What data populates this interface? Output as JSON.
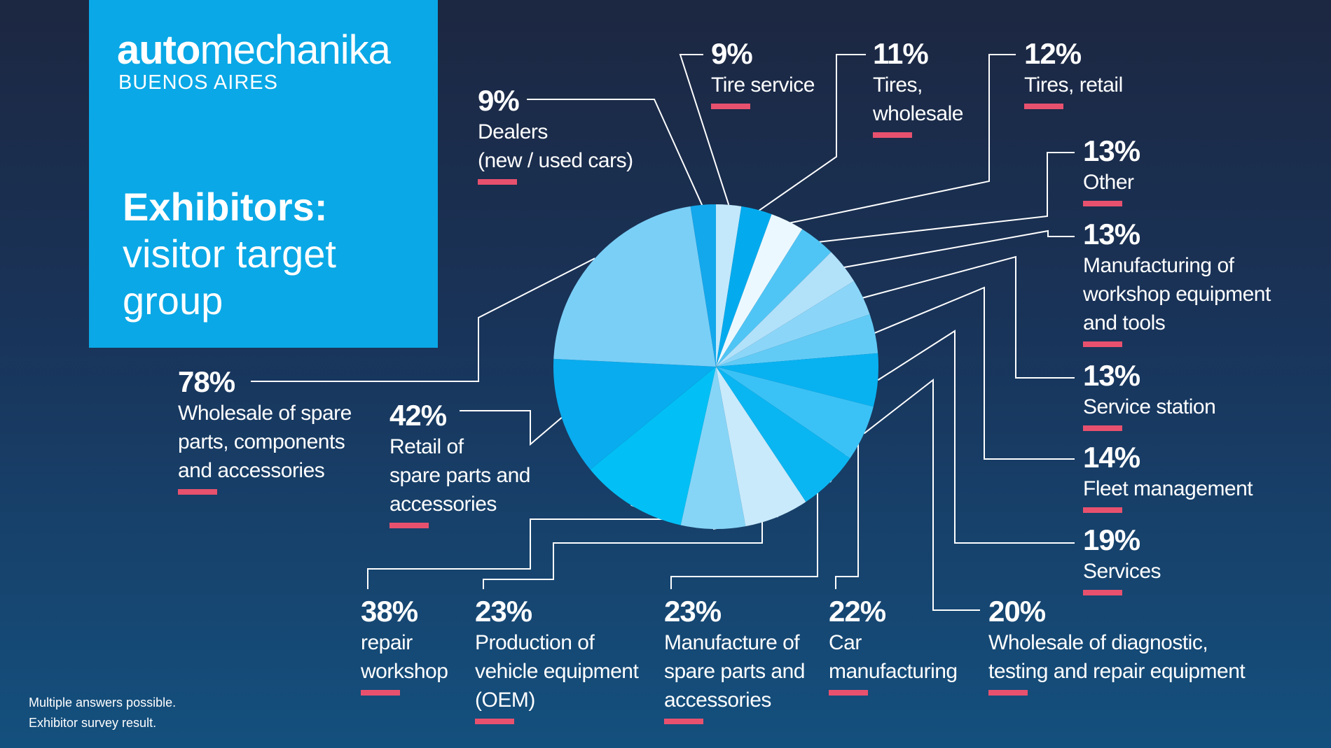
{
  "brand": {
    "logo_bold": "auto",
    "logo_regular": "mechanika",
    "logo_sub": "BUENOS AIRES",
    "title_line1": "Exhibitors:",
    "title_line2": "visitor target",
    "title_line3": "group"
  },
  "footnote": {
    "line1": "Multiple answers possible.",
    "line2": "Exhibitor survey result."
  },
  "colors": {
    "accent_bar": "#e8516e",
    "brand_blue": "#0aa8e6",
    "slice_palette": [
      "#c3e8fb",
      "#03abee",
      "#ecf8ff",
      "#4fc5f5",
      "#b2e1fa",
      "#8bd6f8",
      "#61cbf6",
      "#08b2f1",
      "#3ac2f6",
      "#0ab6f2",
      "#c9eafb",
      "#86d5f7",
      "#02c0f5",
      "#09acee",
      "#7acff7",
      "#13a8ec"
    ]
  },
  "chart_data": {
    "type": "pie",
    "title": "Exhibitors: visitor target group",
    "unit": "%",
    "slices": [
      {
        "label": "Dealers (new / used cars)",
        "value": 9
      },
      {
        "label": "Tire service",
        "value": 9
      },
      {
        "label": "Tires, wholesale",
        "value": 11
      },
      {
        "label": "Tires, retail",
        "value": 12
      },
      {
        "label": "Other",
        "value": 13
      },
      {
        "label": "Manufacturing of workshop equipment and tools",
        "value": 13
      },
      {
        "label": "Service station",
        "value": 13
      },
      {
        "label": "Fleet management",
        "value": 14
      },
      {
        "label": "Services",
        "value": 19
      },
      {
        "label": "Wholesale of diagnostic, testing and repair equipment",
        "value": 20
      },
      {
        "label": "Car manufacturing",
        "value": 22
      },
      {
        "label": "Manufacture of spare parts and accessories",
        "value": 23
      },
      {
        "label": "Production of vehicle equipment (OEM)",
        "value": 23
      },
      {
        "label": "repair workshop",
        "value": 38
      },
      {
        "label": "Retail of spare parts and accessories",
        "value": 42
      },
      {
        "label": "Wholesale of spare parts, components and accessories",
        "value": 78
      }
    ],
    "start_slice": "Tire service",
    "direction": "clockwise"
  },
  "labels": [
    {
      "pct": "9%",
      "text": "Dealers\n(new / used cars)"
    },
    {
      "pct": "9%",
      "text": "Tire service"
    },
    {
      "pct": "11%",
      "text": "Tires,\nwholesale"
    },
    {
      "pct": "12%",
      "text": "Tires, retail"
    },
    {
      "pct": "13%",
      "text": "Other"
    },
    {
      "pct": "13%",
      "text": "Manufacturing of\nworkshop equipment\nand tools"
    },
    {
      "pct": "13%",
      "text": "Service station"
    },
    {
      "pct": "14%",
      "text": "Fleet management"
    },
    {
      "pct": "19%",
      "text": "Services"
    },
    {
      "pct": "20%",
      "text": "Wholesale of diagnostic,\ntesting and repair equipment"
    },
    {
      "pct": "22%",
      "text": "Car\nmanufacturing"
    },
    {
      "pct": "23%",
      "text": "Manufacture of\nspare parts and\naccessories"
    },
    {
      "pct": "23%",
      "text": "Production of\nvehicle equipment\n(OEM)"
    },
    {
      "pct": "38%",
      "text": "repair\nworkshop"
    },
    {
      "pct": "42%",
      "text": "Retail of\nspare parts and\naccessories"
    },
    {
      "pct": "78%",
      "text": "Wholesale of spare\nparts, components\nand accessories"
    }
  ]
}
